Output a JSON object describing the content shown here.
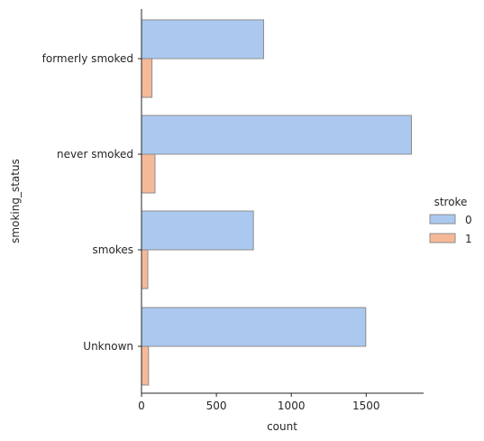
{
  "chart_data": {
    "type": "bar",
    "orientation": "horizontal",
    "categories": [
      "formerly smoked",
      "never smoked",
      "smokes",
      "Unknown"
    ],
    "series": [
      {
        "name": "0",
        "values": [
          815,
          1802,
          747,
          1497
        ],
        "color": "#abc9ef"
      },
      {
        "name": "1",
        "values": [
          70,
          90,
          42,
          47
        ],
        "color": "#f6b997"
      }
    ],
    "xlabel": "count",
    "ylabel": "smoking_status",
    "xlim": [
      0,
      1900
    ],
    "xticks": [
      0,
      500,
      1000,
      1500
    ],
    "grid": false,
    "legend": {
      "title": "stroke",
      "entries": [
        "0",
        "1"
      ],
      "placement": "right"
    },
    "bar_edge_color": "#8c8c8c"
  }
}
